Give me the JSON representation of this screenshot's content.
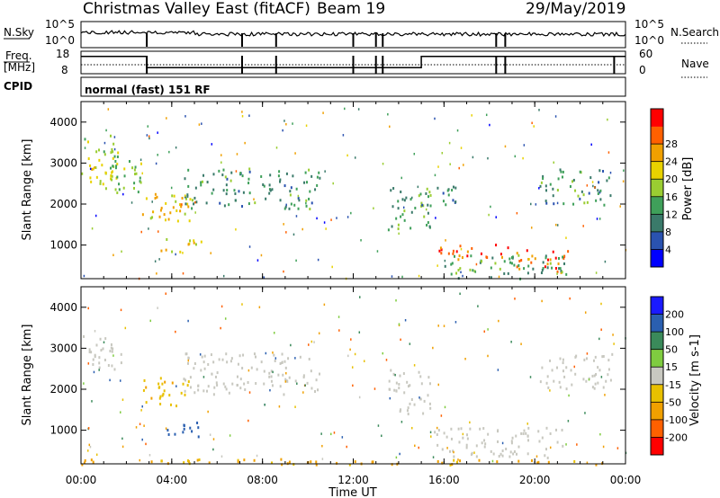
{
  "header": {
    "title": "Christmas Valley East (fitACF)",
    "beam": "Beam 19",
    "date": "29/May/2019"
  },
  "side_labels": {
    "nsky": "N.Sky",
    "nsearch": "N.Search",
    "freq_line1": "Freq.",
    "freq_line2": "[MHz]",
    "nave": "Nave",
    "cpid": "CPID"
  },
  "cpid_text": "normal (fast) 151 RF",
  "noise_ticks_left": [
    "10^5",
    "10^0"
  ],
  "noise_ticks_right": [
    "10^5",
    "10^0"
  ],
  "freq_ticks_left": [
    "18",
    "8"
  ],
  "nave_ticks_right": [
    "60",
    "0"
  ],
  "y_axis_label": "Slant Range [km]",
  "x_axis_label": "Time UT",
  "x_ticks": [
    "00:00",
    "04:00",
    "08:00",
    "12:00",
    "16:00",
    "20:00",
    "00:00"
  ],
  "y_ticks": [
    "1000",
    "2000",
    "3000",
    "4000"
  ],
  "power_colorbar": {
    "label": "Power [dB]",
    "ticks": [
      "4",
      "8",
      "12",
      "16",
      "20",
      "24",
      "28"
    ],
    "colors": [
      "#0000ff",
      "#2a52b0",
      "#3a7a6a",
      "#3fa05a",
      "#9acd32",
      "#e8d200",
      "#f0a000",
      "#ff6000",
      "#ff0000"
    ]
  },
  "velocity_colorbar": {
    "label": "Velocity [m s-1]",
    "ticks": [
      "200",
      "100",
      "50",
      "15",
      "-15",
      "-50",
      "-100",
      "-200"
    ],
    "colors": [
      "#1a1aff",
      "#2a5fb0",
      "#3a8a5a",
      "#7fcc40",
      "#c8c8c0",
      "#e8c000",
      "#f0a000",
      "#ff6000",
      "#ff0000"
    ]
  },
  "chart_data": [
    {
      "type": "heatmap",
      "panel": "power",
      "xlabel": "Time UT",
      "ylabel": "Slant Range [km]",
      "xlim": [
        0,
        24
      ],
      "ylim": [
        180,
        4500
      ],
      "colorbar_label": "Power [dB]",
      "scatter_regions": [
        {
          "t0": 0.0,
          "t1": 1.6,
          "r0": 2400,
          "r1": 3700,
          "level": 18
        },
        {
          "t0": 0.8,
          "t1": 3.0,
          "r0": 2300,
          "r1": 3200,
          "level": 14
        },
        {
          "t0": 2.6,
          "t1": 4.8,
          "r0": 1600,
          "r1": 2300,
          "level": 20
        },
        {
          "t0": 3.4,
          "t1": 4.4,
          "r0": 1700,
          "r1": 2100,
          "level": 24
        },
        {
          "t0": 3.5,
          "t1": 5.3,
          "r0": 850,
          "r1": 1250,
          "level": 18
        },
        {
          "t0": 4.5,
          "t1": 10.5,
          "r0": 1900,
          "r1": 2900,
          "level": 10
        },
        {
          "t0": 13.5,
          "t1": 15.5,
          "r0": 1400,
          "r1": 2500,
          "level": 12
        },
        {
          "t0": 15.0,
          "t1": 17.0,
          "r0": 2000,
          "r1": 2500,
          "level": 10
        },
        {
          "t0": 15.7,
          "t1": 19.0,
          "r0": 650,
          "r1": 1050,
          "level": 28
        },
        {
          "t0": 19.0,
          "t1": 21.5,
          "r0": 350,
          "r1": 900,
          "level": 28
        },
        {
          "t0": 16.0,
          "t1": 21.5,
          "r0": 200,
          "r1": 800,
          "level": 12
        },
        {
          "t0": 20.2,
          "t1": 23.4,
          "r0": 2000,
          "r1": 2900,
          "level": 10
        }
      ]
    },
    {
      "type": "heatmap",
      "panel": "velocity",
      "xlabel": "Time UT",
      "ylabel": "Slant Range [km]",
      "xlim": [
        0,
        24
      ],
      "ylim": [
        180,
        4500
      ],
      "colorbar_label": "Velocity [m s-1]",
      "scatter_regions": [
        {
          "t0": 0.0,
          "t1": 1.8,
          "r0": 2500,
          "r1": 3400,
          "level": 0
        },
        {
          "t0": 2.6,
          "t1": 4.8,
          "r0": 1600,
          "r1": 2300,
          "level": -40
        },
        {
          "t0": 3.5,
          "t1": 5.3,
          "r0": 850,
          "r1": 1250,
          "level": 150
        },
        {
          "t0": 4.5,
          "t1": 10.5,
          "r0": 1900,
          "r1": 2900,
          "level": 0
        },
        {
          "t0": 13.5,
          "t1": 15.5,
          "r0": 1400,
          "r1": 2500,
          "level": 0
        },
        {
          "t0": 15.5,
          "t1": 21.3,
          "r0": 350,
          "r1": 1100,
          "level": 0
        },
        {
          "t0": 20.2,
          "t1": 23.4,
          "r0": 2000,
          "r1": 2900,
          "level": 0
        },
        {
          "t0": 0.0,
          "t1": 24.0,
          "r0": 180,
          "r1": 320,
          "level": -60
        }
      ]
    }
  ]
}
